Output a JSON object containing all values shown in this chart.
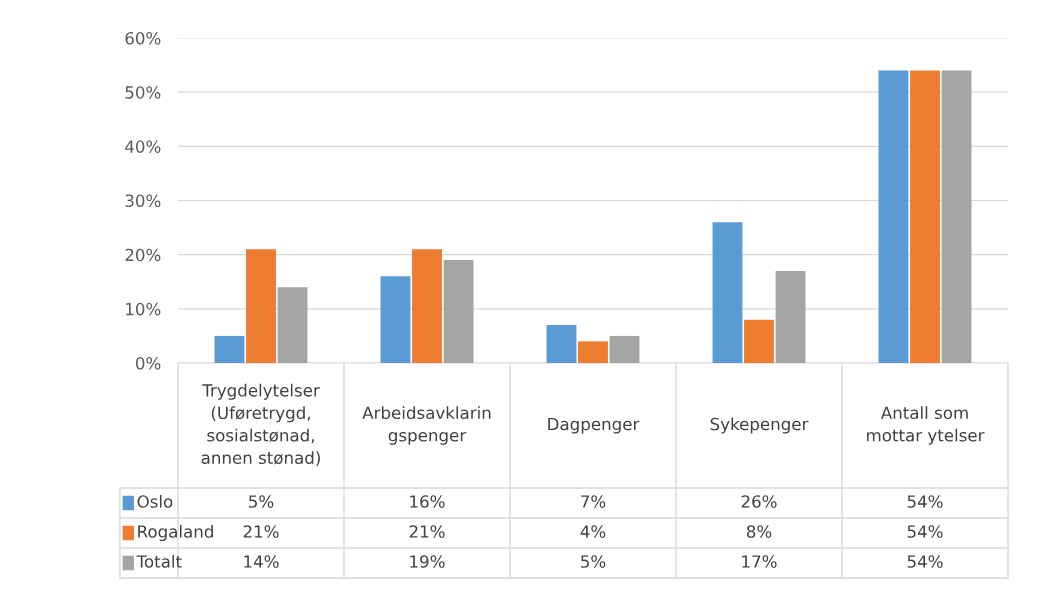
{
  "chart_data": {
    "type": "bar",
    "categories": [
      "Trygdelytelser\n(Uføretrygd,\nsosialstønad,\nannen stønad)",
      "Arbeidsavklarin\ngspenger",
      "Dagpenger",
      "Sykepenger",
      "Antall som\nmottar ytelser"
    ],
    "series": [
      {
        "name": "Oslo",
        "color": "#5b9bd5",
        "values": [
          5,
          16,
          7,
          26,
          54
        ],
        "value_labels": [
          "5%",
          "16%",
          "7%",
          "26%",
          "54%"
        ]
      },
      {
        "name": "Rogaland",
        "color": "#ed7d31",
        "values": [
          21,
          21,
          4,
          8,
          54
        ],
        "value_labels": [
          "21%",
          "21%",
          "4%",
          "8%",
          "54%"
        ]
      },
      {
        "name": "Totalt",
        "color": "#a5a5a5",
        "values": [
          14,
          19,
          5,
          17,
          54
        ],
        "value_labels": [
          "14%",
          "19%",
          "5%",
          "17%",
          "54%"
        ]
      }
    ],
    "ylim": [
      0,
      60
    ],
    "yticks": [
      {
        "value": 0,
        "label": "0%"
      },
      {
        "value": 10,
        "label": "10%"
      },
      {
        "value": 20,
        "label": "20%"
      },
      {
        "value": 30,
        "label": "30%"
      },
      {
        "value": 40,
        "label": "40%"
      },
      {
        "value": 50,
        "label": "50%"
      },
      {
        "value": 60,
        "label": "60%"
      }
    ],
    "grid": "y",
    "legend": "bottom left"
  }
}
